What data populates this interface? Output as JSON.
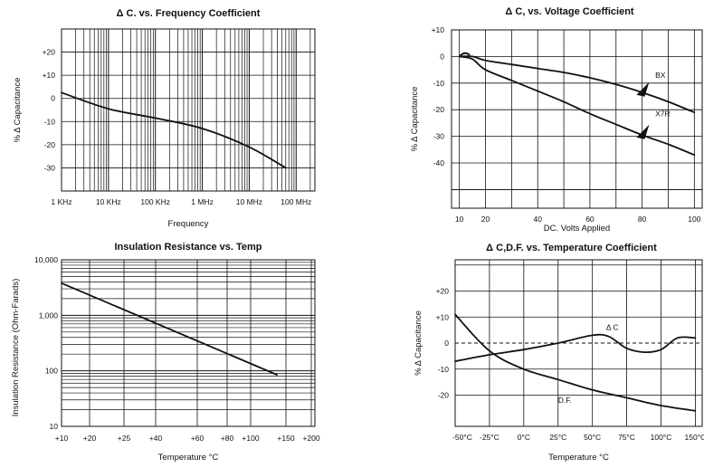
{
  "chart_data": [
    {
      "type": "line",
      "title": "Δ C. vs. Frequency Coefficient",
      "xlabel": "Frequency",
      "ylabel": "% Δ Capacitance",
      "x_scale": "log",
      "x_ticks": [
        "1 KHz",
        "10 KHz",
        "100 KHz",
        "1 MHz",
        "10 MHz",
        "100 MHz"
      ],
      "y_ticks": [
        "+20",
        "+10",
        "0",
        "-10",
        "-20",
        "-30"
      ],
      "ylim": [
        -40,
        30
      ],
      "grid": true,
      "series": [
        {
          "x": [
            "1 KHz",
            "10 KHz",
            "100 KHz",
            "1 MHz",
            "10 MHz",
            "60 MHz"
          ],
          "values": [
            2.5,
            -4.5,
            -8.5,
            -13,
            -21,
            -30
          ]
        }
      ]
    },
    {
      "type": "line",
      "title": "Δ C, vs. Voltage Coefficient",
      "xlabel": "DC. Volts Applied",
      "ylabel": "% Δ Capacitance",
      "x_ticks": [
        "10",
        "20",
        "40",
        "60",
        "80",
        "100"
      ],
      "y_ticks": [
        "+10",
        "0",
        "-10",
        "-20",
        "-30",
        "-40"
      ],
      "ylim": [
        -57,
        10
      ],
      "grid": true,
      "series": [
        {
          "name": "BX",
          "x": [
            10,
            15,
            20,
            30,
            40,
            50,
            60,
            70,
            80,
            90,
            100
          ],
          "values": [
            0,
            0,
            -1.5,
            -3,
            -4.5,
            -6,
            -8,
            -10.5,
            -13.5,
            -17,
            -21
          ]
        },
        {
          "name": "X7R",
          "x": [
            10,
            15,
            20,
            30,
            40,
            50,
            60,
            70,
            80,
            90,
            100
          ],
          "values": [
            0,
            -1,
            -5,
            -9,
            -13,
            -17,
            -21.5,
            -25.5,
            -29.5,
            -33,
            -37
          ]
        }
      ]
    },
    {
      "type": "line",
      "title": "Insulation Resistance vs. Temp",
      "xlabel": "Temperature °C",
      "ylabel": "Insulation Resistance (Ohm-Farads)",
      "y_scale": "log",
      "x_ticks": [
        "+10",
        "+20",
        "+25",
        "+40",
        "+60",
        "+80",
        "+100",
        "+150",
        "+200"
      ],
      "y_ticks": [
        "10,000",
        "1,000",
        "100",
        "10"
      ],
      "grid": true,
      "series": [
        {
          "x": [
            "+10",
            "+125"
          ],
          "values": [
            3800,
            85
          ]
        }
      ]
    },
    {
      "type": "line",
      "title": "Δ C,D.F. vs. Temperature Coefficient",
      "xlabel": "Temperature °C",
      "ylabel": "% Δ Capacitance",
      "x_ticks": [
        "-50°C",
        "-25°C",
        "0°C",
        "25°C",
        "50°C",
        "75°C",
        "100°C",
        "150°C"
      ],
      "y_ticks": [
        "+20",
        "+10",
        "0",
        "-10",
        "-20"
      ],
      "ylim": [
        -32,
        32
      ],
      "grid": true,
      "series": [
        {
          "name": "Δ C",
          "x": [
            -50,
            -25,
            0,
            25,
            50,
            62,
            75,
            88,
            100,
            112,
            125
          ],
          "values": [
            -7,
            -4.5,
            -2.5,
            0,
            3,
            2.5,
            -2,
            -3.5,
            -2.5,
            2,
            2
          ]
        },
        {
          "name": "D.F.",
          "x": [
            -50,
            -25,
            0,
            25,
            50,
            75,
            100,
            125
          ],
          "values": [
            11,
            -3,
            -10,
            -14,
            -18,
            -21,
            -24,
            -26
          ]
        }
      ]
    }
  ]
}
